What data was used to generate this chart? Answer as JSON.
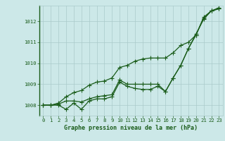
{
  "title": "Graphe pression niveau de la mer (hPa)",
  "bg_color": "#cce8e8",
  "grid_color": "#aacaca",
  "line_color": "#1a5c1a",
  "xlim": [
    -0.5,
    23.5
  ],
  "ylim": [
    1007.5,
    1012.75
  ],
  "yticks": [
    1008,
    1009,
    1010,
    1011,
    1012
  ],
  "xticks": [
    0,
    1,
    2,
    3,
    4,
    5,
    6,
    7,
    8,
    9,
    10,
    11,
    12,
    13,
    14,
    15,
    16,
    17,
    18,
    19,
    20,
    21,
    22,
    23
  ],
  "series1": [
    1008.0,
    1008.0,
    1008.0,
    1007.8,
    1008.1,
    1007.8,
    1008.2,
    1008.3,
    1008.3,
    1008.4,
    1009.1,
    1008.9,
    1008.8,
    1008.75,
    1008.75,
    1008.9,
    1008.65,
    1009.3,
    1009.9,
    1010.7,
    1011.4,
    1012.1,
    1012.5,
    1012.6
  ],
  "series2": [
    1008.0,
    1008.0,
    1008.05,
    1008.2,
    1008.2,
    1008.15,
    1008.3,
    1008.4,
    1008.45,
    1008.5,
    1009.2,
    1009.0,
    1009.0,
    1009.0,
    1009.0,
    1009.0,
    1008.65,
    1009.3,
    1009.9,
    1010.7,
    1011.35,
    1012.15,
    1012.5,
    1012.6
  ],
  "series3": [
    1008.0,
    1008.0,
    1008.1,
    1008.4,
    1008.6,
    1008.7,
    1008.95,
    1009.1,
    1009.15,
    1009.3,
    1009.8,
    1009.9,
    1010.1,
    1010.2,
    1010.25,
    1010.25,
    1010.25,
    1010.5,
    1010.85,
    1011.0,
    1011.35,
    1012.2,
    1012.5,
    1012.65
  ],
  "xlabel_fontsize": 6.0,
  "tick_fontsize": 5.2
}
